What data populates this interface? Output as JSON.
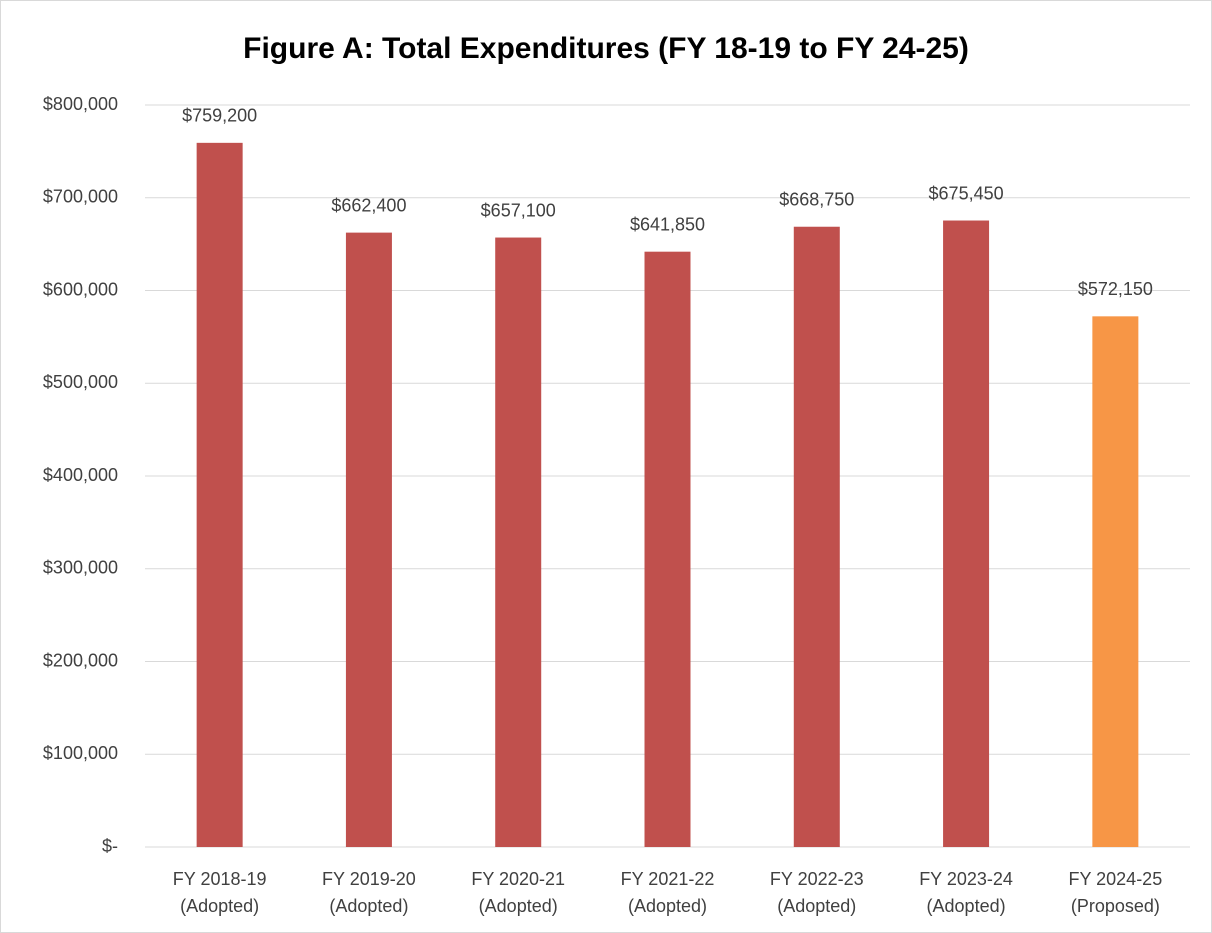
{
  "chart_data": {
    "type": "bar",
    "title": "Figure A: Total Expenditures (FY 18-19 to FY 24-25)",
    "categories": [
      [
        "FY 2018-19",
        "(Adopted)"
      ],
      [
        "FY 2019-20",
        "(Adopted)"
      ],
      [
        "FY 2020-21",
        "(Adopted)"
      ],
      [
        "FY 2021-22",
        "(Adopted)"
      ],
      [
        "FY 2022-23",
        "(Adopted)"
      ],
      [
        "FY 2023-24",
        "(Adopted)"
      ],
      [
        "FY 2024-25",
        "(Proposed)"
      ]
    ],
    "values": [
      759200,
      662400,
      657100,
      641850,
      668750,
      675450,
      572150
    ],
    "value_labels": [
      "$759,200",
      "$662,400",
      "$657,100",
      "$641,850",
      "$668,750",
      "$675,450",
      "$572,150"
    ],
    "colors": [
      "#c0504d",
      "#c0504d",
      "#c0504d",
      "#c0504d",
      "#c0504d",
      "#c0504d",
      "#f79646"
    ],
    "ylim": [
      0,
      800000
    ],
    "yticks": [
      {
        "value": 0,
        "label": "$-"
      },
      {
        "value": 100000,
        "label": "$100,000"
      },
      {
        "value": 200000,
        "label": "$200,000"
      },
      {
        "value": 300000,
        "label": "$300,000"
      },
      {
        "value": 400000,
        "label": "$400,000"
      },
      {
        "value": 500000,
        "label": "$500,000"
      },
      {
        "value": 600000,
        "label": "$600,000"
      },
      {
        "value": 700000,
        "label": "$700,000"
      },
      {
        "value": 800000,
        "label": "$800,000"
      }
    ],
    "grid": true
  }
}
